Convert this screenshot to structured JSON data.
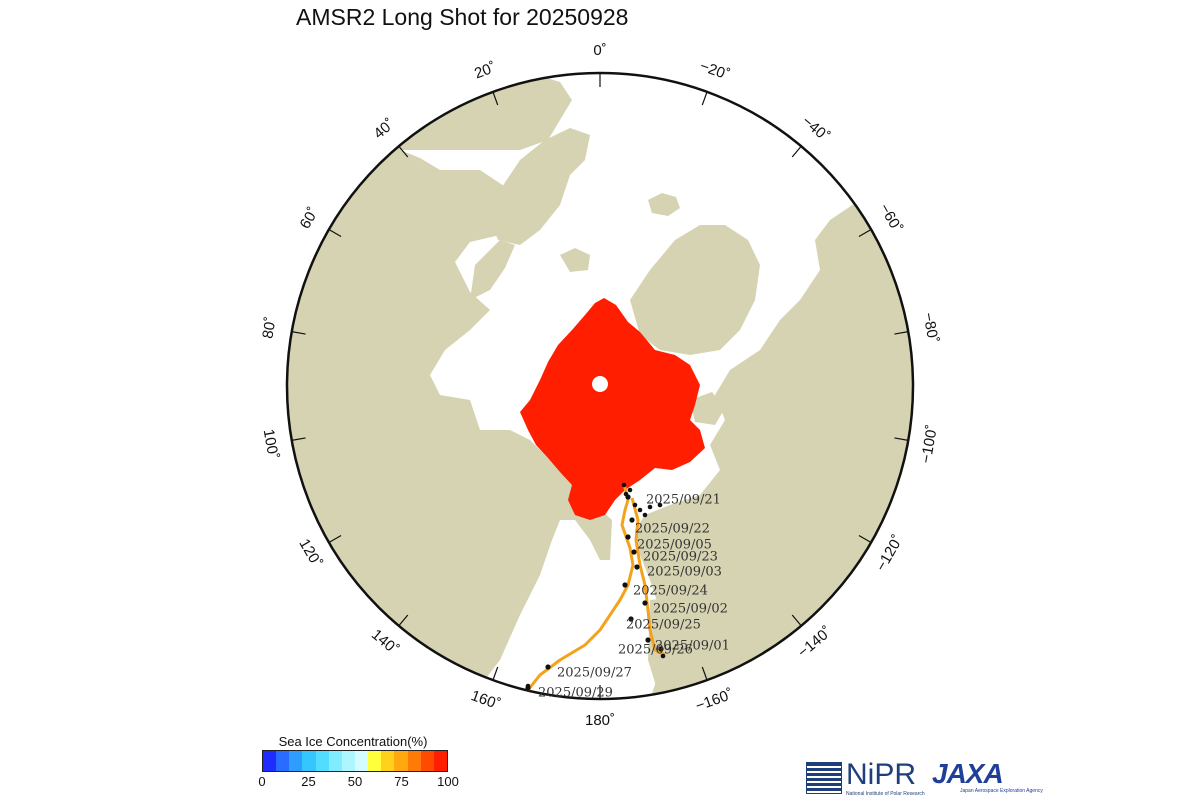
{
  "title": "AMSR2 Long Shot for 20250928",
  "map": {
    "land_color": "#d5d3b1",
    "ocean_color": "#ffffff",
    "ice_color": "#ff1e00",
    "track_color": "#f4a21c",
    "longitude_labels": [
      {
        "lon": 0,
        "text": "0˚"
      },
      {
        "lon": -20,
        "text": "−20˚"
      },
      {
        "lon": -40,
        "text": "−40˚"
      },
      {
        "lon": -60,
        "text": "−60˚"
      },
      {
        "lon": -80,
        "text": "−80˚"
      },
      {
        "lon": -100,
        "text": "−100˚"
      },
      {
        "lon": -120,
        "text": "−120˚"
      },
      {
        "lon": -140,
        "text": "−140˚"
      },
      {
        "lon": -160,
        "text": "−160˚"
      },
      {
        "lon": 180,
        "text": "180˚"
      },
      {
        "lon": 160,
        "text": "160˚"
      },
      {
        "lon": 140,
        "text": "140˚"
      },
      {
        "lon": 120,
        "text": "120˚"
      },
      {
        "lon": 100,
        "text": "100˚"
      },
      {
        "lon": 80,
        "text": "80˚"
      },
      {
        "lon": 60,
        "text": "60˚"
      },
      {
        "lon": 40,
        "text": "40˚"
      },
      {
        "lon": 20,
        "text": "20˚"
      }
    ],
    "track_dates": [
      "2025/09/21",
      "2025/09/22",
      "2025/09/05",
      "2025/09/23",
      "2025/09/03",
      "2025/09/24",
      "2025/09/02",
      "2025/09/25",
      "2025/09/26",
      "2025/09/01",
      "2025/09/27",
      "2025/09/29"
    ]
  },
  "colorbar": {
    "title": "Sea Ice Concentration(%)",
    "colors": [
      "#1e2cff",
      "#2a6cff",
      "#2f9cff",
      "#35c5ff",
      "#52dcff",
      "#7fecff",
      "#aef6ff",
      "#d4fbff",
      "#ffff3c",
      "#ffd11a",
      "#ffa80f",
      "#ff7a06",
      "#ff4a02",
      "#ff1e00"
    ],
    "ticks": [
      "0",
      "25",
      "50",
      "75",
      "100"
    ]
  },
  "logos": {
    "nipr": "NiPR",
    "nipr_sub": "National Institute of Polar Research",
    "jaxa": "JAXA",
    "jaxa_sub": "Japan Aerospace Exploration Agency"
  }
}
